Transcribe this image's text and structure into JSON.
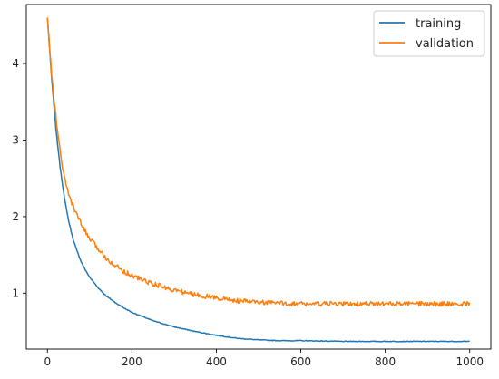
{
  "chart_data": {
    "type": "line",
    "title": "",
    "xlabel": "",
    "ylabel": "",
    "xlim": [
      -50,
      1050
    ],
    "ylim": [
      0.27,
      4.77
    ],
    "xticks": [
      0,
      200,
      400,
      600,
      800,
      1000
    ],
    "yticks": [
      1,
      2,
      3,
      4
    ],
    "grid": false,
    "legend_position": "top-right",
    "series": [
      {
        "name": "training",
        "color": "#1f77b4",
        "x": [
          0,
          10,
          20,
          30,
          40,
          50,
          60,
          70,
          80,
          90,
          100,
          120,
          140,
          160,
          180,
          200,
          250,
          300,
          350,
          400,
          450,
          500,
          550,
          600,
          700,
          800,
          900,
          1000
        ],
        "y": [
          4.6,
          3.8,
          3.15,
          2.65,
          2.25,
          1.95,
          1.72,
          1.55,
          1.41,
          1.3,
          1.21,
          1.07,
          0.96,
          0.88,
          0.81,
          0.75,
          0.64,
          0.56,
          0.5,
          0.45,
          0.41,
          0.39,
          0.38,
          0.38,
          0.37,
          0.37,
          0.37,
          0.37
        ]
      },
      {
        "name": "validation",
        "color": "#ff7f0e",
        "x": [
          0,
          10,
          20,
          30,
          40,
          50,
          60,
          70,
          80,
          90,
          100,
          120,
          140,
          160,
          180,
          200,
          250,
          300,
          350,
          400,
          450,
          500,
          550,
          600,
          700,
          800,
          900,
          1000
        ],
        "y": [
          4.6,
          3.85,
          3.3,
          2.85,
          2.5,
          2.3,
          2.15,
          2.02,
          1.9,
          1.8,
          1.71,
          1.58,
          1.46,
          1.36,
          1.29,
          1.23,
          1.12,
          1.04,
          0.98,
          0.94,
          0.9,
          0.88,
          0.87,
          0.86,
          0.86,
          0.86,
          0.86,
          0.86
        ]
      }
    ]
  }
}
